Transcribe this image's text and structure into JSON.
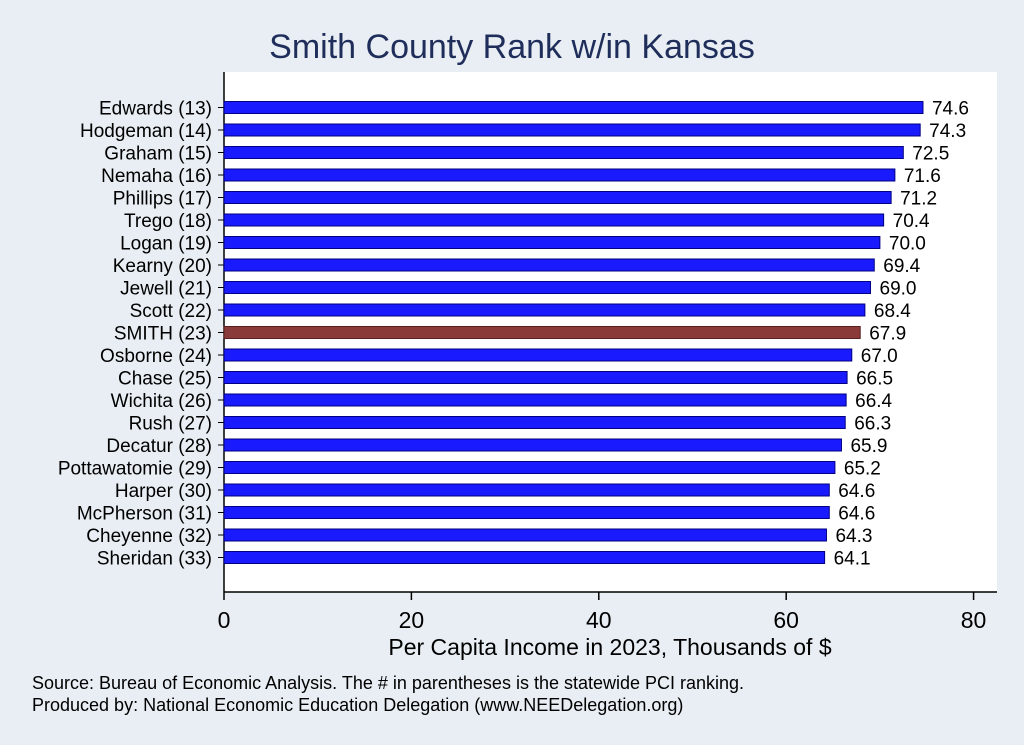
{
  "chart_data": {
    "type": "bar",
    "orientation": "horizontal",
    "title": "Smith County Rank w/in Kansas",
    "xlabel": "Per Capita Income in 2023, Thousands of $",
    "ylabel": "",
    "xlim": [
      0,
      82.5
    ],
    "xticks": [
      0,
      20,
      40,
      60,
      80
    ],
    "categories": [
      "Edwards (13)",
      "Hodgeman (14)",
      "Graham (15)",
      "Nemaha (16)",
      "Phillips (17)",
      "Trego (18)",
      "Logan (19)",
      "Kearny (20)",
      "Jewell (21)",
      "Scott (22)",
      "SMITH (23)",
      "Osborne (24)",
      "Chase (25)",
      "Wichita (26)",
      "Rush (27)",
      "Decatur (28)",
      "Pottawatomie (29)",
      "Harper (30)",
      "McPherson (31)",
      "Cheyenne (32)",
      "Sheridan (33)"
    ],
    "values": [
      74.6,
      74.3,
      72.5,
      71.6,
      71.2,
      70.4,
      70.0,
      69.4,
      69.0,
      68.4,
      67.9,
      67.0,
      66.5,
      66.4,
      66.3,
      65.9,
      65.2,
      64.6,
      64.6,
      64.3,
      64.1
    ],
    "value_labels": [
      "74.6",
      "74.3",
      "72.5",
      "71.6",
      "71.2",
      "70.4",
      "70.0",
      "69.4",
      "69.0",
      "68.4",
      "67.9",
      "67.0",
      "66.5",
      "66.4",
      "66.3",
      "65.9",
      "65.2",
      "64.6",
      "64.6",
      "64.3",
      "64.1"
    ],
    "highlight_category": "SMITH (23)",
    "bar_color": "#1a1aff",
    "highlight_color": "#8b3a3a",
    "grid": false
  },
  "footer": {
    "source": "Source: Bureau of Economic Analysis. The # in parentheses is the statewide PCI ranking.",
    "produced_by": "Produced by: National Economic Education Delegation (www.NEEDelegation.org)"
  },
  "colors": {
    "background": "#e8eef3",
    "plot_background": "#ffffff",
    "title": "#1f2d5a"
  }
}
